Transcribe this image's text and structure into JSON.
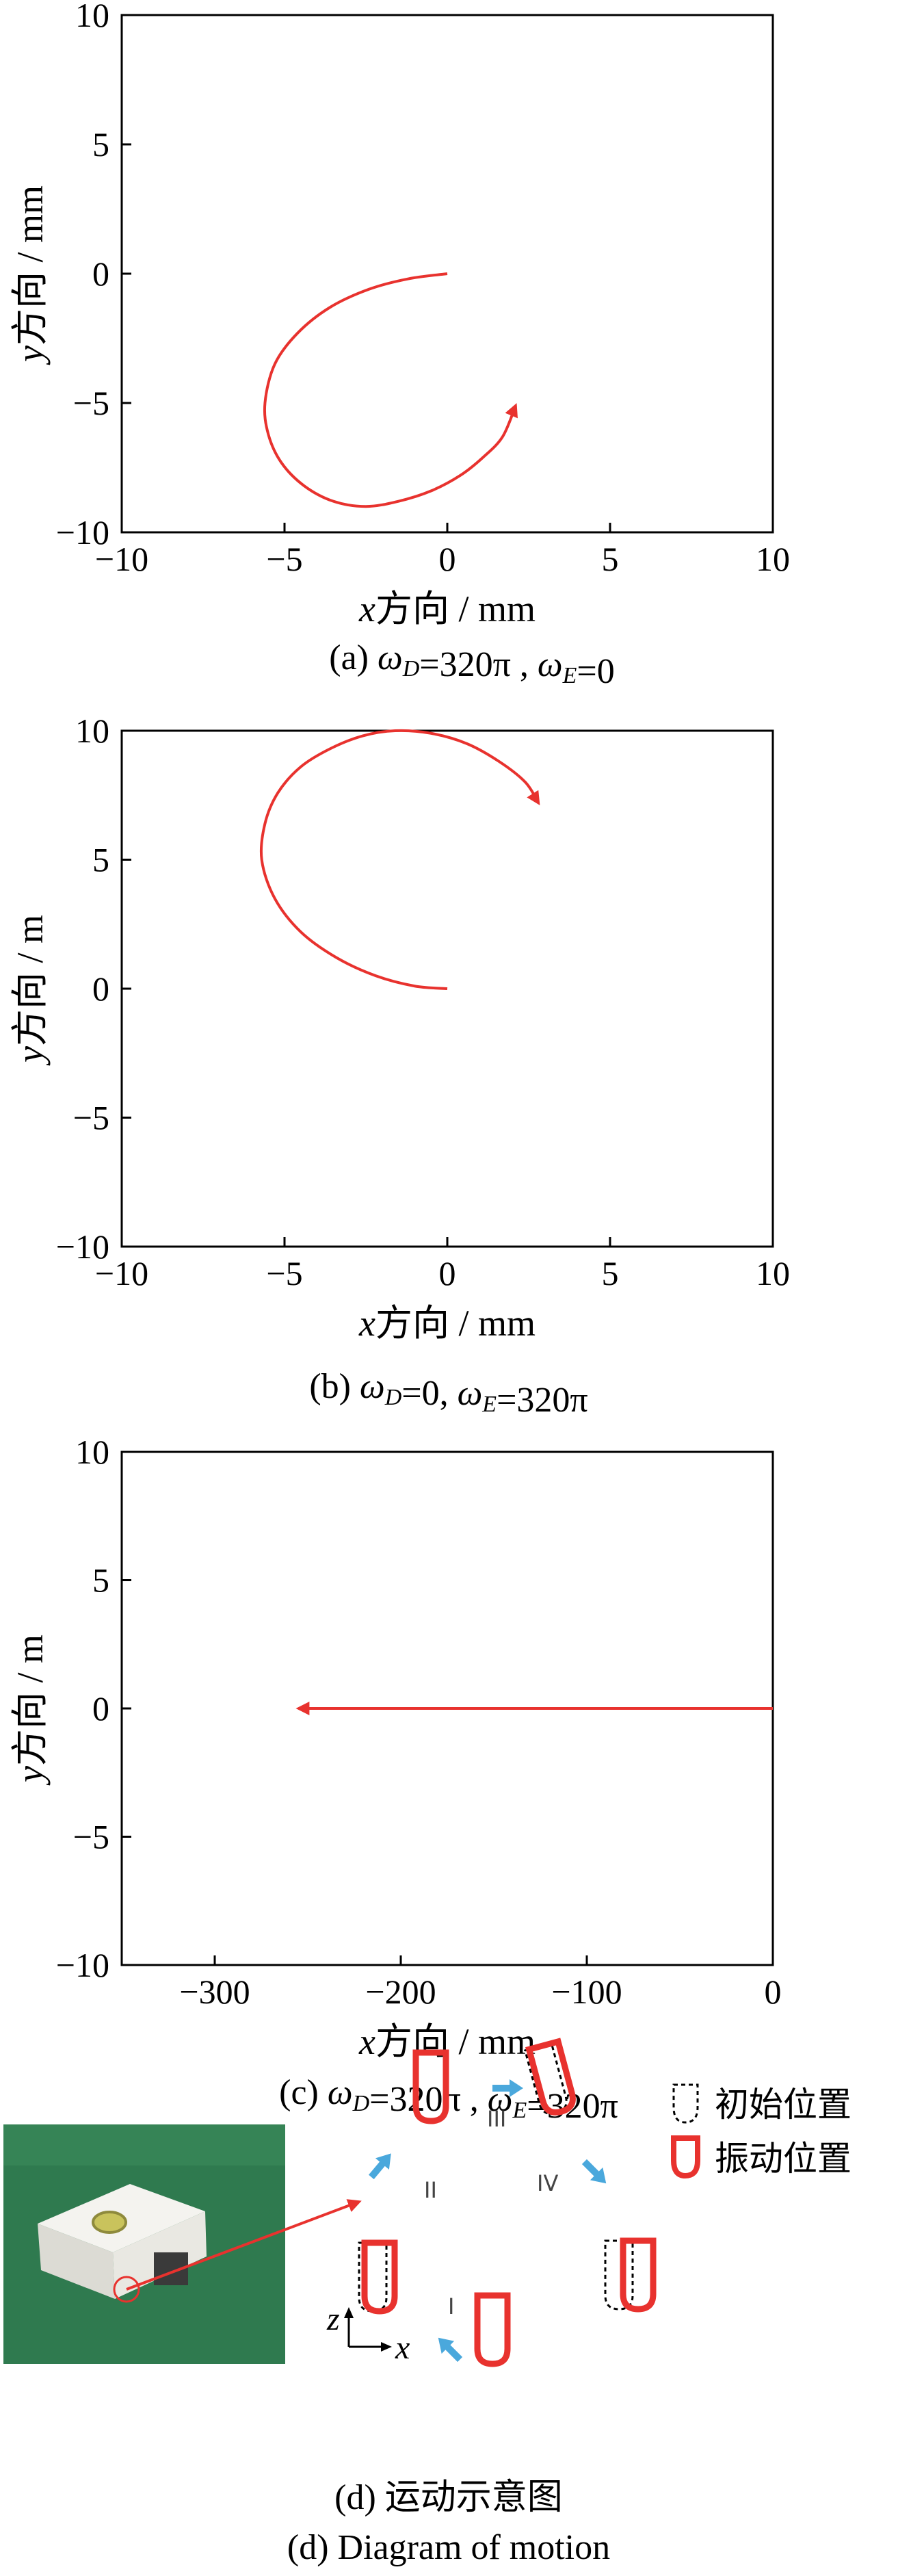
{
  "chart_data": [
    {
      "type": "line",
      "xlabel": "x方向 / mm",
      "ylabel": "y方向 / mm",
      "xlim": [
        -10,
        10
      ],
      "ylim": [
        -10,
        10
      ],
      "xticks": [
        "−10",
        "−5",
        "0",
        "5",
        "10"
      ],
      "yticks": [
        "10",
        "5",
        "0",
        "−5",
        "−10"
      ],
      "caption": "(a)  ωD=320π , ωE=0",
      "series": [
        {
          "color": "#e8322e",
          "x": [
            0,
            -1.2,
            -2.4,
            -3.6,
            -4.6,
            -5.3,
            -5.6,
            -5.5,
            -5.1,
            -4.4,
            -3.5,
            -2.5,
            -1.5,
            -0.5,
            0.4,
            1.1,
            1.7,
            2.1
          ],
          "y": [
            0,
            -0.2,
            -0.6,
            -1.3,
            -2.3,
            -3.5,
            -5.0,
            -6.2,
            -7.3,
            -8.2,
            -8.8,
            -9.0,
            -8.8,
            -8.4,
            -7.8,
            -7.1,
            -6.3,
            -5.1
          ]
        }
      ]
    },
    {
      "type": "line",
      "xlabel": "x方向 / mm",
      "ylabel": "y方向 / m",
      "xlim": [
        -10,
        10
      ],
      "ylim": [
        -10,
        10
      ],
      "xticks": [
        "−10",
        "−5",
        "0",
        "5",
        "10"
      ],
      "yticks": [
        "10",
        "5",
        "0",
        "−5",
        "−10"
      ],
      "caption": "(b)  ωD=0, ωE=320π",
      "series": [
        {
          "color": "#e8322e",
          "x": [
            0,
            -1.0,
            -2.2,
            -3.4,
            -4.5,
            -5.3,
            -5.7,
            -5.6,
            -5.2,
            -4.5,
            -3.6,
            -2.6,
            -1.6,
            -0.5,
            0.6,
            1.6,
            2.4,
            2.8
          ],
          "y": [
            0,
            0.1,
            0.5,
            1.2,
            2.2,
            3.5,
            5.0,
            6.4,
            7.6,
            8.6,
            9.3,
            9.8,
            10.0,
            9.9,
            9.5,
            8.8,
            8.0,
            7.2
          ]
        }
      ]
    },
    {
      "type": "line",
      "xlabel": "x方向 / mm",
      "ylabel": "y方向 / m",
      "xlim": [
        -350,
        0
      ],
      "ylim": [
        -10,
        10
      ],
      "xticks": [
        "−300",
        "−200",
        "−100",
        "0"
      ],
      "yticks": [
        "10",
        "5",
        "0",
        "−5",
        "−10"
      ],
      "caption": "(c)  ωD=320π , ωE=320π",
      "series": [
        {
          "color": "#e8322e",
          "x": [
            0,
            -255
          ],
          "y": [
            0,
            0
          ]
        }
      ]
    }
  ],
  "panel_d": {
    "legend_initial": "初始位置",
    "legend_vibration": "振动位置",
    "stage_labels": [
      "I",
      "II",
      "III",
      "IV"
    ],
    "axis_z": "z",
    "axis_x": "x",
    "caption_cn": "(d)  运动示意图",
    "caption_en": "(d)  Diagram of motion",
    "colors": {
      "red": "#e8322e",
      "arrow": "#4aa8dc",
      "photo_bg": "#2f7a4f",
      "device": "#f2f1ec"
    }
  }
}
